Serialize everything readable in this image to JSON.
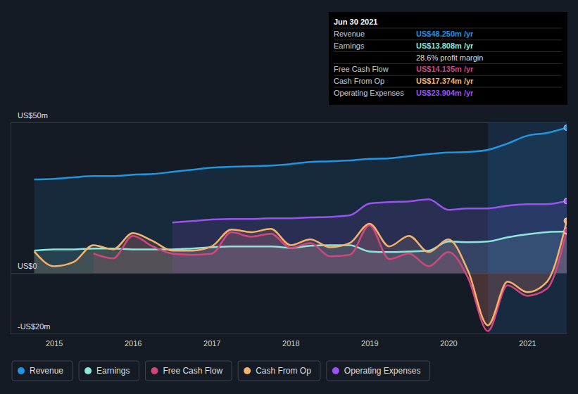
{
  "chart_data": {
    "type": "line",
    "x": [
      2014.75,
      2015,
      2015.25,
      2015.5,
      2015.75,
      2016,
      2016.25,
      2016.5,
      2016.75,
      2017,
      2017.25,
      2017.5,
      2017.75,
      2018,
      2018.25,
      2018.5,
      2018.75,
      2019,
      2019.25,
      2019.5,
      2019.75,
      2020,
      2020.25,
      2020.5,
      2020.75,
      2021,
      2021.25,
      2021.5
    ],
    "xlim": [
      2014.45,
      2021.5
    ],
    "xticks": [
      2015,
      2016,
      2017,
      2018,
      2019,
      2020,
      2021
    ],
    "ylim": [
      -20,
      50
    ],
    "yticks": [
      {
        "value": -20,
        "label": "-US$20m"
      },
      {
        "value": 0,
        "label": "US$0"
      },
      {
        "value": 50,
        "label": "US$50m"
      }
    ],
    "grid": true,
    "legend": "bottom",
    "series": [
      {
        "name": "Revenue",
        "color": "#2394df",
        "values": [
          31.1,
          31.3,
          31.8,
          32.2,
          32.2,
          32.7,
          32.9,
          33.6,
          34.3,
          35.0,
          35.3,
          35.5,
          35.7,
          36.2,
          36.9,
          37.1,
          37.4,
          37.9,
          38.1,
          38.8,
          39.5,
          40.0,
          40.2,
          40.9,
          43.0,
          45.6,
          46.5,
          48.25
        ]
      },
      {
        "name": "Earnings",
        "color": "#8ee5da",
        "values": [
          7.5,
          7.9,
          7.9,
          8.2,
          8.2,
          7.9,
          7.9,
          7.9,
          8.2,
          8.6,
          8.9,
          8.9,
          8.9,
          8.4,
          9.1,
          9.3,
          9.3,
          7.2,
          7.0,
          7.2,
          7.5,
          10.5,
          10.3,
          10.5,
          11.9,
          12.9,
          13.6,
          13.808
        ]
      },
      {
        "name": "Free Cash Flow",
        "color": "#d1467d",
        "values": [
          null,
          null,
          null,
          6.5,
          4.9,
          12.4,
          8.9,
          6.5,
          6.1,
          6.5,
          13.6,
          12.1,
          13.1,
          8.4,
          10.0,
          5.6,
          6.1,
          15.9,
          4.7,
          6.5,
          2.3,
          7.0,
          -1.6,
          -19.2,
          -4.0,
          -7.5,
          -5.1,
          14.135
        ]
      },
      {
        "name": "Cash From Op",
        "color": "#f4b26a",
        "values": [
          7.2,
          2.3,
          3.7,
          9.3,
          7.9,
          13.3,
          10.7,
          7.5,
          7.5,
          8.9,
          14.5,
          13.6,
          14.7,
          9.3,
          11.2,
          8.6,
          10.0,
          16.4,
          8.9,
          12.4,
          7.0,
          11.2,
          0.7,
          -17.3,
          -2.8,
          -6.3,
          -2.8,
          17.374
        ]
      },
      {
        "name": "Operating Expenses",
        "color": "#9a52f0",
        "values": [
          null,
          null,
          null,
          null,
          null,
          null,
          null,
          16.8,
          17.3,
          17.8,
          18.0,
          18.0,
          18.2,
          18.2,
          18.5,
          18.7,
          19.2,
          23.1,
          23.6,
          23.8,
          24.5,
          21.0,
          21.5,
          21.5,
          22.4,
          22.9,
          22.9,
          23.904
        ]
      }
    ],
    "annotations": {
      "title": "Jun 30 2021",
      "rows": [
        {
          "label": "Revenue",
          "text": "US$48.250m /yr"
        },
        {
          "label": "Earnings",
          "text": "US$13.808m /yr"
        },
        {
          "text": "28.6% profit margin"
        },
        {
          "label": "Free Cash Flow",
          "text": "US$14.135m /yr"
        },
        {
          "label": "Cash From Op",
          "text": "US$17.374m /yr"
        },
        {
          "label": "Operating Expenses",
          "text": "US$23.904m /yr"
        }
      ]
    }
  }
}
